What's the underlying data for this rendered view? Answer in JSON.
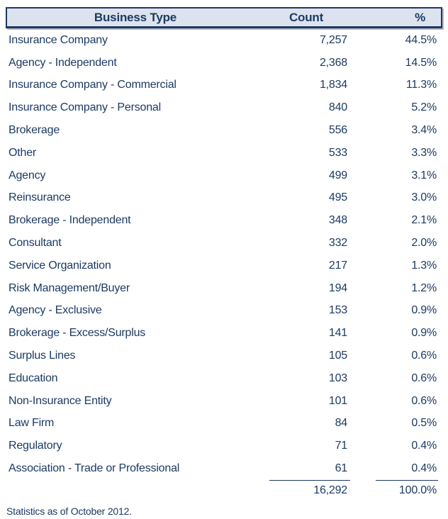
{
  "colors": {
    "text_navy": "#1c3a63",
    "border_navy": "#1f3864",
    "header_bg": "#dde3ee",
    "header_shadow": "#7d828c"
  },
  "table": {
    "columns": {
      "business_type": "Business Type",
      "count": "Count",
      "percent": "%"
    },
    "rows": [
      {
        "business_type": "Insurance Company",
        "count": "7,257",
        "percent": "44.5%"
      },
      {
        "business_type": "Agency - Independent",
        "count": "2,368",
        "percent": "14.5%"
      },
      {
        "business_type": "Insurance Company - Commercial",
        "count": "1,834",
        "percent": "11.3%"
      },
      {
        "business_type": "Insurance Company - Personal",
        "count": "840",
        "percent": "5.2%"
      },
      {
        "business_type": "Brokerage",
        "count": "556",
        "percent": "3.4%"
      },
      {
        "business_type": "Other",
        "count": "533",
        "percent": "3.3%"
      },
      {
        "business_type": "Agency",
        "count": "499",
        "percent": "3.1%"
      },
      {
        "business_type": "Reinsurance",
        "count": "495",
        "percent": "3.0%"
      },
      {
        "business_type": "Brokerage - Independent",
        "count": "348",
        "percent": "2.1%"
      },
      {
        "business_type": "Consultant",
        "count": "332",
        "percent": "2.0%"
      },
      {
        "business_type": "Service Organization",
        "count": "217",
        "percent": "1.3%"
      },
      {
        "business_type": "Risk Management/Buyer",
        "count": "194",
        "percent": "1.2%"
      },
      {
        "business_type": "Agency - Exclusive",
        "count": "153",
        "percent": "0.9%"
      },
      {
        "business_type": "Brokerage - Excess/Surplus",
        "count": "141",
        "percent": "0.9%"
      },
      {
        "business_type": "Surplus Lines",
        "count": "105",
        "percent": "0.6%"
      },
      {
        "business_type": "Education",
        "count": "103",
        "percent": "0.6%"
      },
      {
        "business_type": "Non-Insurance Entity",
        "count": "101",
        "percent": "0.6%"
      },
      {
        "business_type": "Law Firm",
        "count": "84",
        "percent": "0.5%"
      },
      {
        "business_type": "Regulatory",
        "count": "71",
        "percent": "0.4%"
      },
      {
        "business_type": "Association - Trade or Professional",
        "count": "61",
        "percent": "0.4%"
      }
    ],
    "total": {
      "count": "16,292",
      "percent": "100.0%"
    }
  },
  "footnote": "Statistics as of October 2012.",
  "chart_data": {
    "type": "table",
    "columns": [
      "Business Type",
      "Count",
      "%"
    ],
    "rows": [
      [
        "Insurance Company",
        7257,
        44.5
      ],
      [
        "Agency - Independent",
        2368,
        14.5
      ],
      [
        "Insurance Company - Commercial",
        1834,
        11.3
      ],
      [
        "Insurance Company - Personal",
        840,
        5.2
      ],
      [
        "Brokerage",
        556,
        3.4
      ],
      [
        "Other",
        533,
        3.3
      ],
      [
        "Agency",
        499,
        3.1
      ],
      [
        "Reinsurance",
        495,
        3.0
      ],
      [
        "Brokerage - Independent",
        348,
        2.1
      ],
      [
        "Consultant",
        332,
        2.0
      ],
      [
        "Service Organization",
        217,
        1.3
      ],
      [
        "Risk Management/Buyer",
        194,
        1.2
      ],
      [
        "Agency - Exclusive",
        153,
        0.9
      ],
      [
        "Brokerage - Excess/Surplus",
        141,
        0.9
      ],
      [
        "Surplus Lines",
        105,
        0.6
      ],
      [
        "Education",
        103,
        0.6
      ],
      [
        "Non-Insurance Entity",
        101,
        0.6
      ],
      [
        "Law Firm",
        84,
        0.5
      ],
      [
        "Regulatory",
        71,
        0.4
      ],
      [
        "Association - Trade or Professional",
        61,
        0.4
      ]
    ],
    "total": {
      "count": 16292,
      "percent": 100.0
    },
    "footnote": "Statistics as of October 2012."
  }
}
